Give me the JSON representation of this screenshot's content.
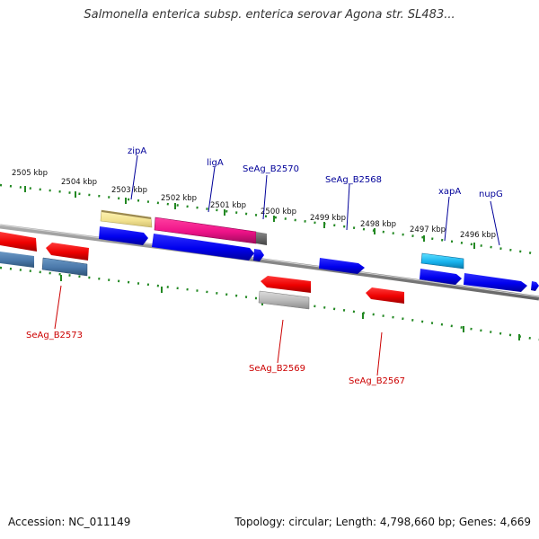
{
  "title": "Salmonella enterica subsp. enterica serovar Agona str. SL483...",
  "footer": {
    "accession": "Accession: NC_011149",
    "summary": "Topology: circular; Length: 4,798,660 bp; Genes: 4,669"
  },
  "ruler": {
    "labels": [
      "2505 kbp",
      "2504 kbp",
      "2503 kbp",
      "2502 kbp",
      "2501 kbp",
      "2500 kbp",
      "2499 kbp",
      "2498 kbp",
      "2497 kbp",
      "2496 kbp"
    ]
  },
  "colors": {
    "forward_gene": "#0000ee",
    "reverse_gene": "#ee0000",
    "backbone": "#888888",
    "ruler_tick": "#228822",
    "forward_label": "#000099",
    "reverse_label": "#cc0000"
  },
  "forward_labels": [
    "zipA",
    "ligA",
    "SeAg_B2570",
    "SeAg_B2568",
    "xapA",
    "nupG"
  ],
  "reverse_labels": [
    "SeAg_B2573",
    "SeAg_B2569",
    "SeAg_B2567"
  ]
}
